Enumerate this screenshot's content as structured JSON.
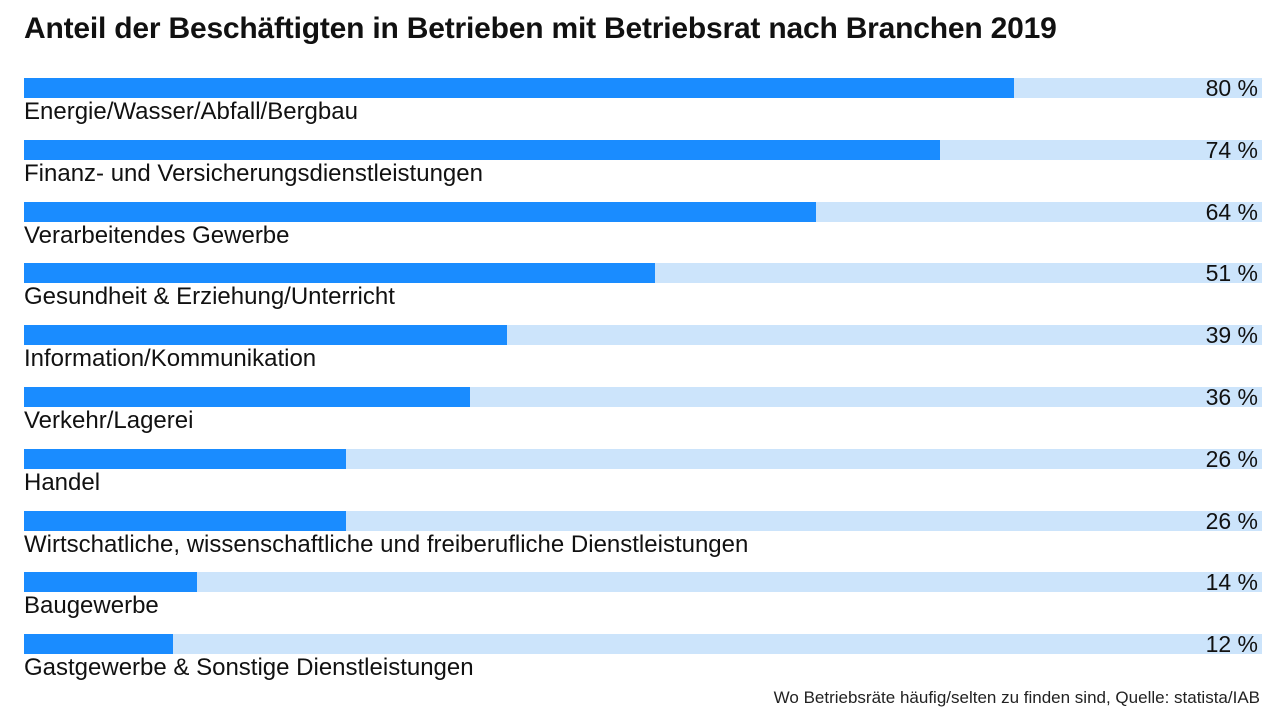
{
  "chart_data": {
    "type": "bar",
    "orientation": "horizontal",
    "title": "Anteil der Beschäftigten in Betrieben mit Betriebsrat nach Branchen 2019",
    "categories": [
      "Energie/Wasser/Abfall/Bergbau",
      "Finanz- und Versicherungsdienstleistungen",
      "Verarbeitendes Gewerbe",
      "Gesundheit & Erziehung/Unterricht",
      "Information/Kommunikation",
      "Verkehr/Lagerei",
      "Handel",
      "Wirtschatliche, wissenschaftliche und freiberufliche Dienstleistungen",
      "Baugewerbe",
      "Gastgewerbe & Sonstige Dienstleistungen"
    ],
    "values": [
      80,
      74,
      64,
      51,
      39,
      36,
      26,
      26,
      14,
      12
    ],
    "value_labels": [
      "80 %",
      "74 %",
      "64 %",
      "51 %",
      "39 %",
      "36 %",
      "26 %",
      "26 %",
      "14 %",
      "12 %"
    ],
    "xlim": [
      0,
      100
    ],
    "grid": false,
    "colors": {
      "bar": "#1a8cff",
      "track": "#cce4fb"
    }
  },
  "source": "Wo Betriebsräte häufig/selten zu finden sind, Quelle: statista/IAB"
}
